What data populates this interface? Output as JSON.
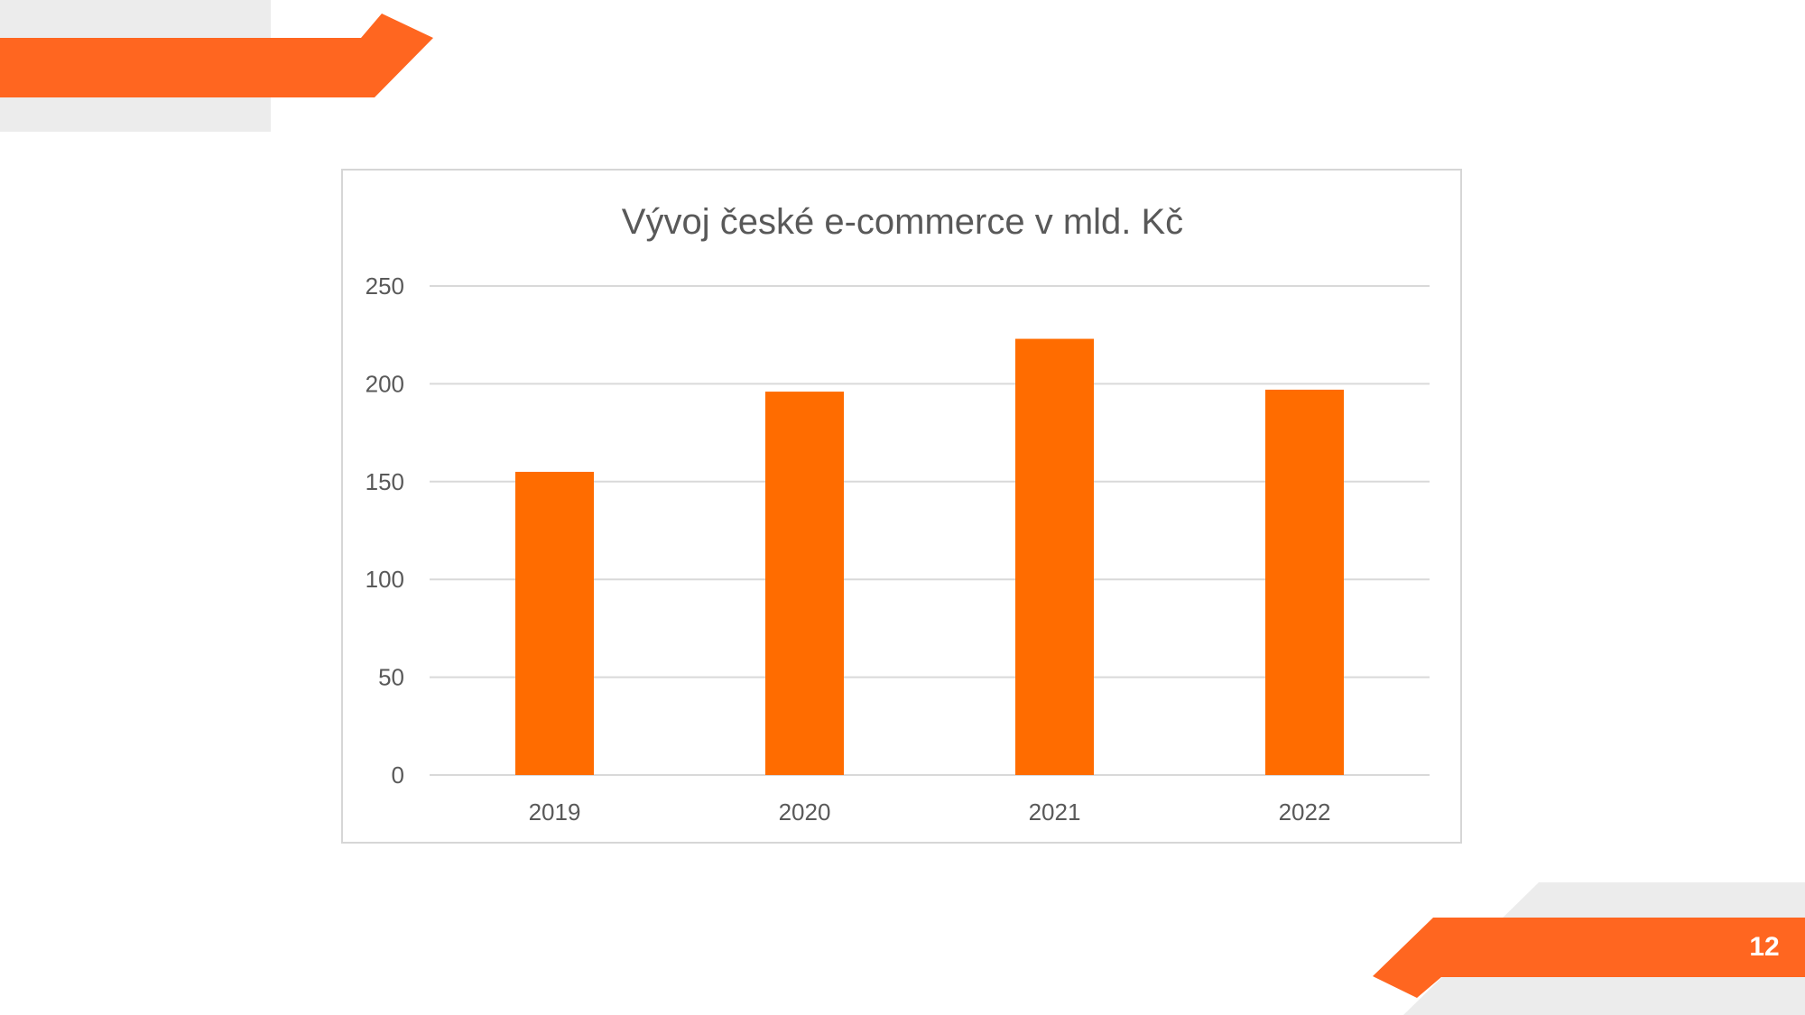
{
  "slide": {
    "page_number": "12",
    "accent_color": "#ff6620",
    "secondary_color": "#ececec"
  },
  "chart_data": {
    "type": "bar",
    "title": "Vývoj české e-commerce v mld. Kč",
    "categories": [
      "2019",
      "2020",
      "2021",
      "2022"
    ],
    "values": [
      155,
      196,
      223,
      197
    ],
    "ylim": [
      0,
      250
    ],
    "yticks": [
      0,
      50,
      100,
      150,
      200,
      250
    ],
    "xlabel": "",
    "ylabel": "",
    "grid": true,
    "bar_color": "#ff6c00",
    "legend": "none"
  }
}
